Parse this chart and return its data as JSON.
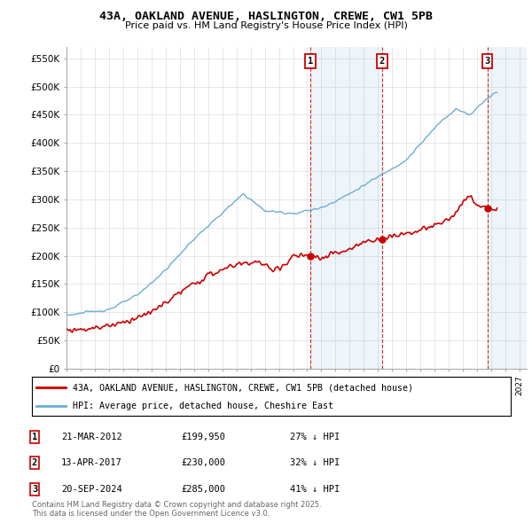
{
  "title": "43A, OAKLAND AVENUE, HASLINGTON, CREWE, CW1 5PB",
  "subtitle": "Price paid vs. HM Land Registry's House Price Index (HPI)",
  "ylim": [
    0,
    570000
  ],
  "yticks": [
    0,
    50000,
    100000,
    150000,
    200000,
    250000,
    300000,
    350000,
    400000,
    450000,
    500000,
    550000
  ],
  "ytick_labels": [
    "£0",
    "£50K",
    "£100K",
    "£150K",
    "£200K",
    "£250K",
    "£300K",
    "£350K",
    "£400K",
    "£450K",
    "£500K",
    "£550K"
  ],
  "xlim_start": 1995.0,
  "xlim_end": 2027.5,
  "hpi_color": "#6baed6",
  "price_color": "#cc0000",
  "transaction_dates": [
    2012.22,
    2017.28,
    2024.72
  ],
  "transaction_labels": [
    "1",
    "2",
    "3"
  ],
  "legend_line1": "43A, OAKLAND AVENUE, HASLINGTON, CREWE, CW1 5PB (detached house)",
  "legend_line2": "HPI: Average price, detached house, Cheshire East",
  "table_rows": [
    [
      "1",
      "21-MAR-2012",
      "£199,950",
      "27% ↓ HPI"
    ],
    [
      "2",
      "13-APR-2017",
      "£230,000",
      "32% ↓ HPI"
    ],
    [
      "3",
      "20-SEP-2024",
      "£285,000",
      "41% ↓ HPI"
    ]
  ],
  "footer": "Contains HM Land Registry data © Crown copyright and database right 2025.\nThis data is licensed under the Open Government Licence v3.0.",
  "background_color": "#ffffff"
}
